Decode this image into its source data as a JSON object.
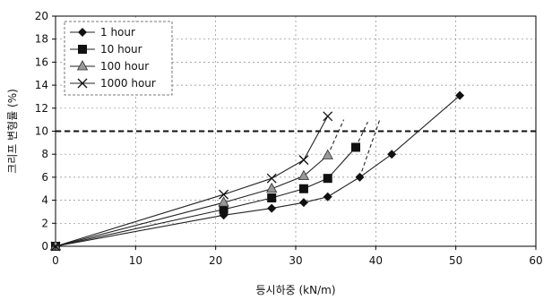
{
  "chart_data": {
    "type": "line",
    "xlabel": "등시하중 (kN/m)",
    "ylabel": "크리프 변형률 (%)",
    "xlim": [
      0,
      60
    ],
    "ylim": [
      0,
      20
    ],
    "x_ticks": [
      "0",
      "10",
      "20",
      "30",
      "40",
      "50",
      "60"
    ],
    "y_ticks": [
      "0",
      "2",
      "4",
      "6",
      "8",
      "10",
      "12",
      "14",
      "16",
      "18",
      "20"
    ],
    "grid": "dashed",
    "legend_position": "top-left",
    "series": [
      {
        "name": "1 hour",
        "marker": "diamond",
        "x": [
          0,
          21,
          27,
          31,
          34,
          38,
          42,
          50.5
        ],
        "y": [
          0,
          2.7,
          3.3,
          3.8,
          4.3,
          6.0,
          8.0,
          13.1
        ]
      },
      {
        "name": "10 hour",
        "marker": "square",
        "x": [
          0,
          21,
          27,
          31,
          34,
          37.5
        ],
        "y": [
          0,
          3.2,
          4.2,
          5.0,
          5.9,
          8.6
        ]
      },
      {
        "name": "100 hour",
        "marker": "triangle",
        "x": [
          0,
          21,
          27,
          31,
          34
        ],
        "y": [
          0,
          3.8,
          5.0,
          6.1,
          7.9
        ]
      },
      {
        "name": "1000 hour",
        "marker": "x",
        "x": [
          0,
          21,
          27,
          31,
          34
        ],
        "y": [
          0,
          4.5,
          5.9,
          7.5,
          11.3
        ]
      }
    ],
    "extensions": [
      {
        "series": "1 hour",
        "x": [
          38,
          40.5
        ],
        "y": [
          6.0,
          11.0
        ]
      },
      {
        "series": "10 hour",
        "x": [
          37.5,
          39
        ],
        "y": [
          8.6,
          10.8
        ]
      },
      {
        "series": "100 hour",
        "x": [
          34,
          36
        ],
        "y": [
          7.9,
          11.0
        ]
      }
    ],
    "reference_line": {
      "y": 10,
      "style": "bold dashed"
    }
  }
}
